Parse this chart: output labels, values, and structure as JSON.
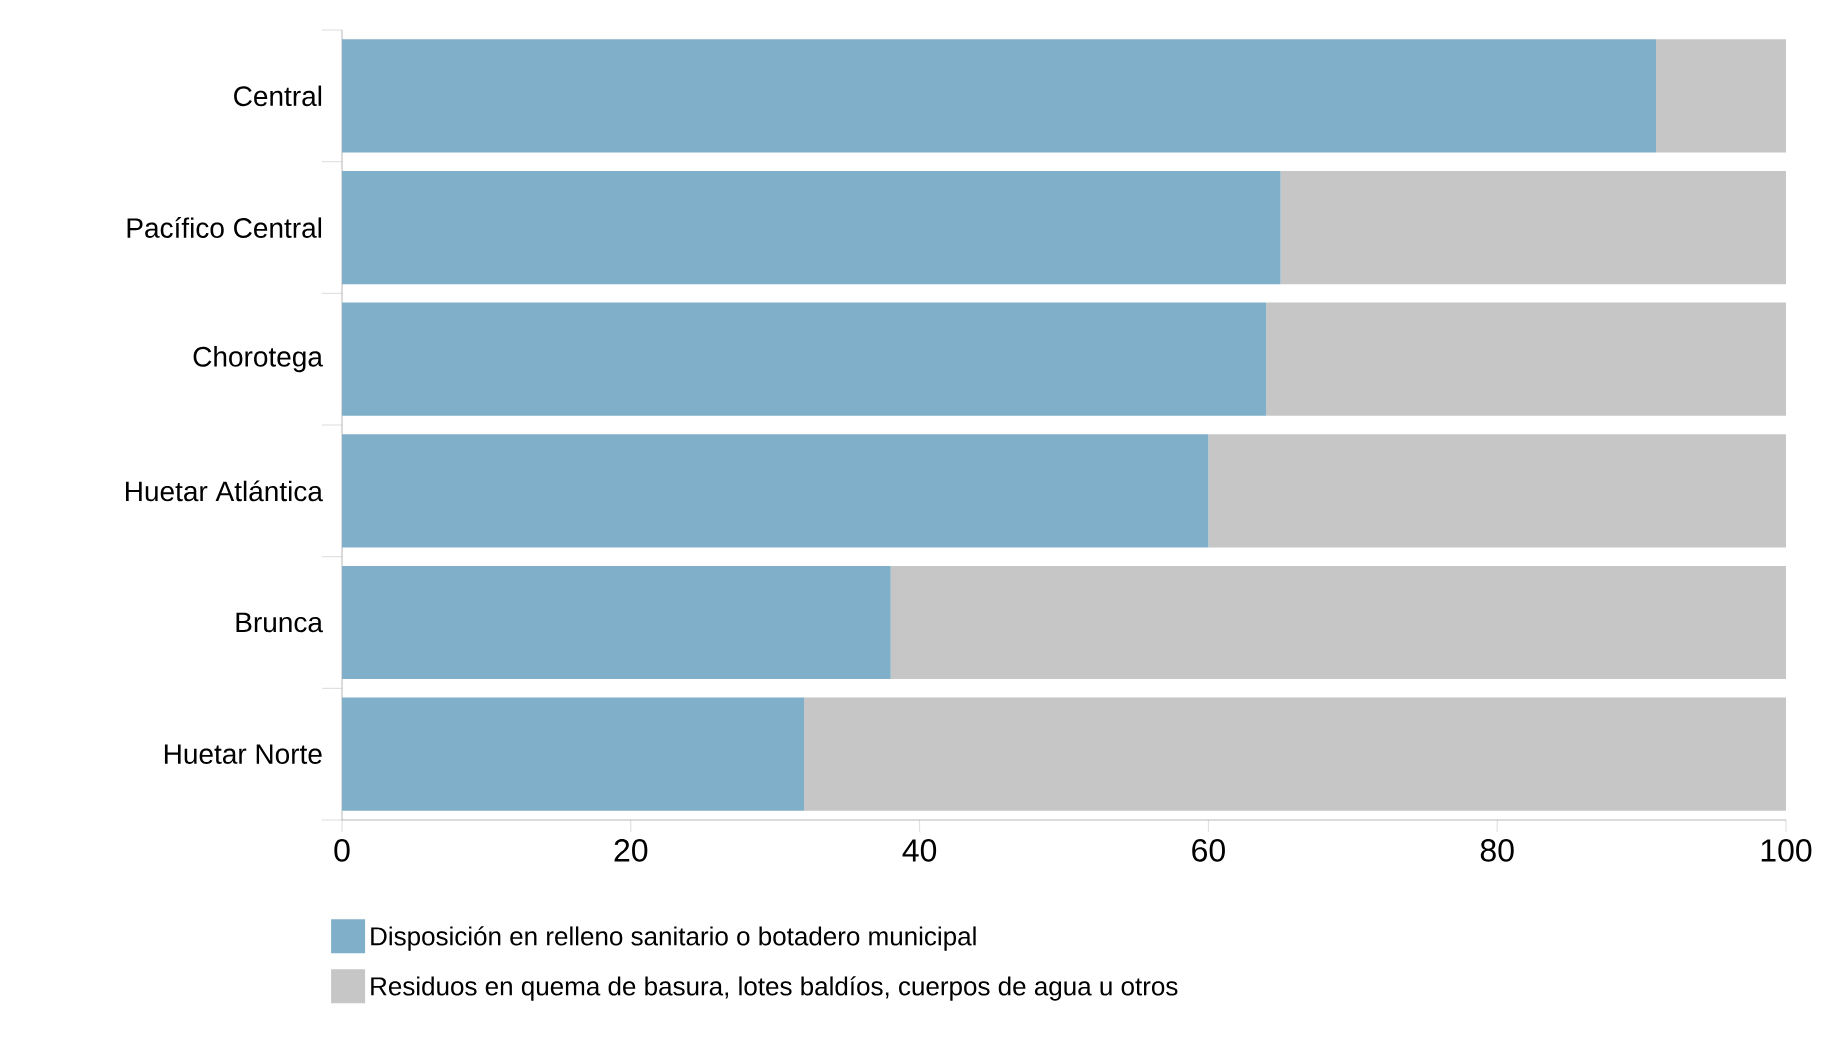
{
  "chart_data": {
    "type": "bar",
    "orientation": "horizontal",
    "stacked": true,
    "categories": [
      "Central",
      "Pacífico Central",
      "Chorotega",
      "Huetar Atlántica",
      "Brunca",
      "Huetar Norte"
    ],
    "series": [
      {
        "name": "Disposición en relleno sanitario o botadero municipal",
        "color": "#80afc9",
        "values": [
          91,
          65,
          64,
          60,
          38,
          32
        ]
      },
      {
        "name": "Residuos en quema de basura, lotes baldíos, cuerpos de agua u otros",
        "color": "#c6c6c6",
        "values": [
          9,
          35,
          36,
          40,
          62,
          68
        ]
      }
    ],
    "xlim": [
      0,
      100
    ],
    "xticks": [
      0,
      20,
      40,
      60,
      80,
      100
    ],
    "grid": false,
    "legend": "bottom"
  }
}
